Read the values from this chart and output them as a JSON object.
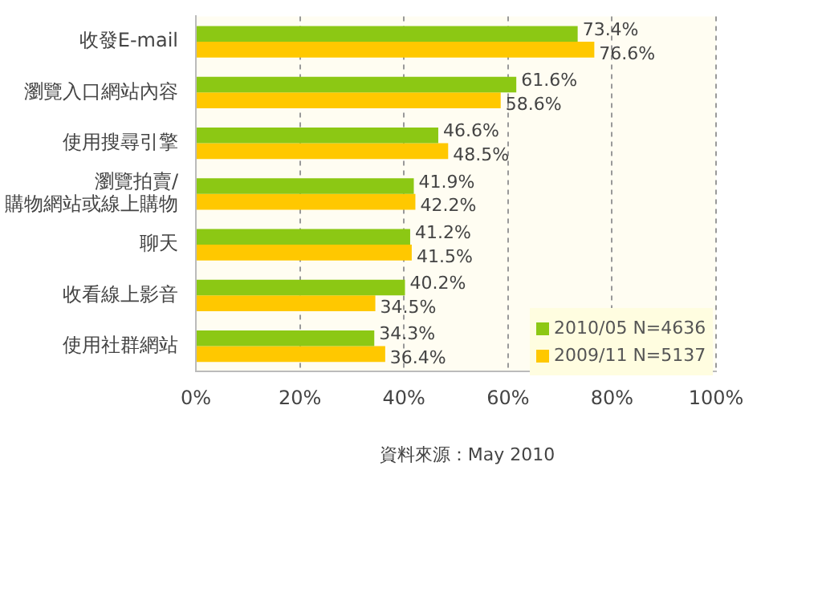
{
  "chart_data": {
    "type": "bar",
    "orientation": "horizontal",
    "categories": [
      "收發E-mail",
      "瀏覽入口網站內容",
      "使用搜尋引擎",
      "瀏覽拍賣/\n購物網站或線上購物",
      "聊天",
      "收看線上影音",
      "使用社群網站"
    ],
    "series": [
      {
        "name": "2010/05 N=4636",
        "color": "#8cc814",
        "values": [
          73.4,
          61.6,
          46.6,
          41.9,
          41.2,
          40.2,
          34.3
        ],
        "value_labels": [
          "73.4%",
          "61.6%",
          "46.6%",
          "41.9%",
          "41.2%",
          "40.2%",
          "34.3%"
        ]
      },
      {
        "name": "2009/11 N=5137",
        "color": "#ffc800",
        "values": [
          76.6,
          58.6,
          48.5,
          42.2,
          41.5,
          34.5,
          36.4
        ],
        "value_labels": [
          "76.6%",
          "58.6%",
          "48.5%",
          "42.2%",
          "41.5%",
          "34.5%",
          "36.4%"
        ]
      }
    ],
    "xlim": [
      0,
      100
    ],
    "xticks": [
      {
        "value": 0,
        "label": "0%"
      },
      {
        "value": 20,
        "label": "20%"
      },
      {
        "value": 40,
        "label": "40%"
      },
      {
        "value": 60,
        "label": "60%"
      },
      {
        "value": 80,
        "label": "80%"
      },
      {
        "value": 100,
        "label": "100%"
      }
    ],
    "grid": "x",
    "legend": "bottom right",
    "annotations": [
      "資料來源：May 2010"
    ]
  }
}
